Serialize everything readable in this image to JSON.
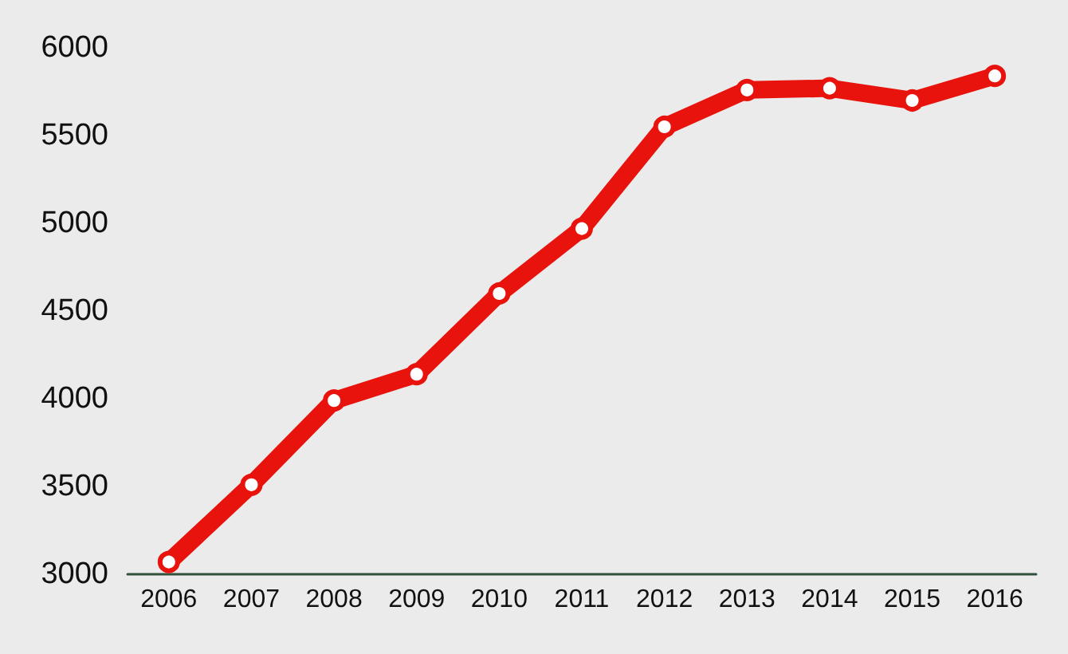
{
  "chart_data": {
    "type": "line",
    "categories": [
      "2006",
      "2007",
      "2008",
      "2009",
      "2010",
      "2011",
      "2012",
      "2013",
      "2014",
      "2015",
      "2016"
    ],
    "series": [
      {
        "color": "#e8130c",
        "values": [
          3070,
          3510,
          3990,
          4140,
          4600,
          4970,
          5550,
          5760,
          5770,
          5700,
          5840
        ]
      }
    ],
    "ylim": [
      3000,
      6000
    ],
    "yticks": [
      3000,
      3500,
      4000,
      4500,
      5000,
      5500,
      6000
    ],
    "grid": false,
    "marker": "circle",
    "line_style": "solid"
  }
}
